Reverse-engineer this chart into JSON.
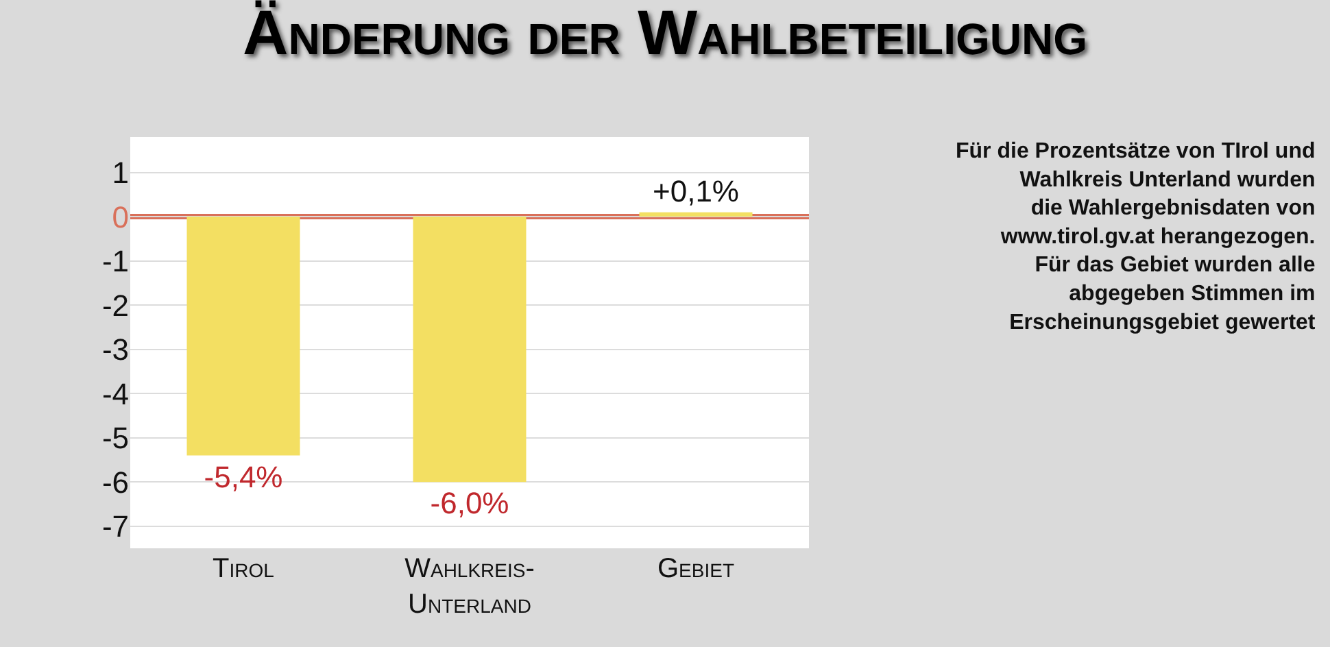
{
  "chart_data": {
    "type": "bar",
    "title": "Änderung der Wahlbeteiligung",
    "categories": [
      "Tirol",
      "Wahlkreis-\nUnterland",
      "Gebiet"
    ],
    "values": [
      -5.4,
      -6.0,
      0.1
    ],
    "color": "#f3df62",
    "value_labels": [
      "-5,4%",
      "-6,0%",
      "+0,1%"
    ],
    "ylim": [
      -7.5,
      1.8
    ],
    "yticks": [
      1,
      0,
      -1,
      -2,
      -3,
      -4,
      -5,
      -6,
      -7
    ],
    "grid": "y",
    "ref_lines": [
      {
        "axis": "y",
        "value": 0,
        "color": "#d9705a"
      }
    ],
    "annotations": [
      "Für die Prozentsätze von TIrol und\nWahlkreis Unterland wurden\ndie Wahlergebnisdaten von\nwww.tirol.gv.at herangezogen.\nFür das Gebiet wurden alle\nabgegeben Stimmen im\nErscheinungsgebiet gewertet"
    ]
  }
}
